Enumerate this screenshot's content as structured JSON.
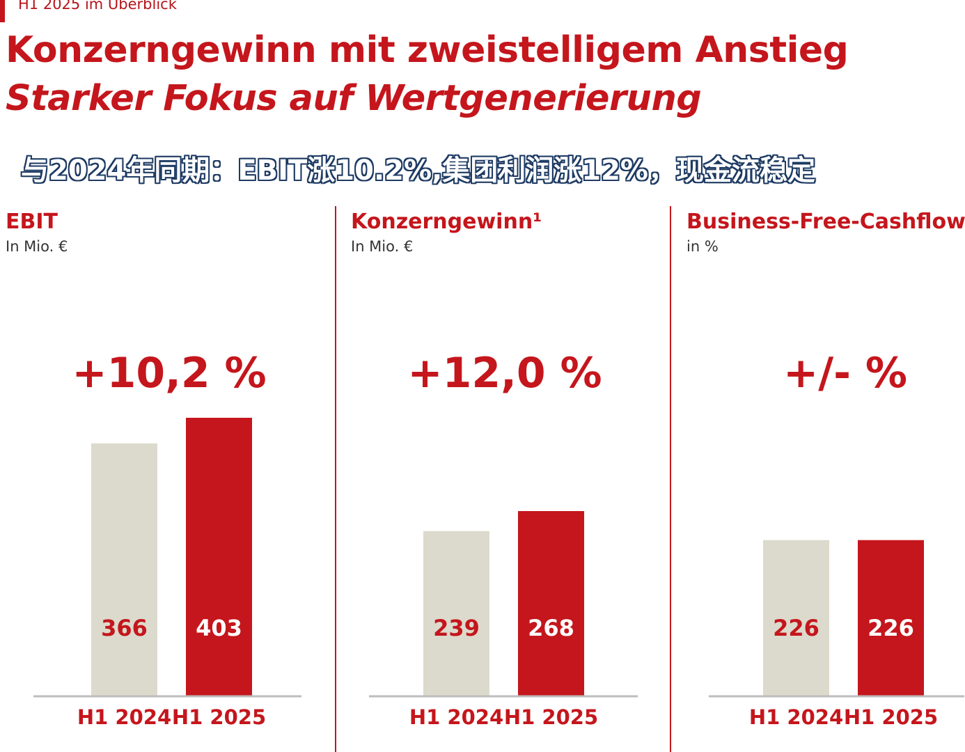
{
  "header": {
    "section_label": "H1 2025 im Überblick",
    "title": "Konzerngewinn mit zweistelligem Anstieg",
    "subtitle": "Starker Fokus auf Wertgenerierung"
  },
  "caption": "与2024年同期：EBIT涨10.2%,集团利润涨12%，现金流稳定",
  "colors": {
    "accent": "#c4161c",
    "bar_prior": "#dcdacc",
    "bar_current": "#c4161c",
    "axis": "#bdbdbd"
  },
  "chart_data": [
    {
      "type": "bar",
      "title": "EBIT",
      "unit": "In Mio. €",
      "change_label": "+10,2 %",
      "categories": [
        "H1 2024",
        "H1 2025"
      ],
      "values": [
        366,
        403
      ],
      "value_labels": [
        "366",
        "403"
      ]
    },
    {
      "type": "bar",
      "title": "Konzerngewinn¹",
      "unit": "In Mio. €",
      "change_label": "+12,0 %",
      "categories": [
        "H1 2024",
        "H1 2025"
      ],
      "values": [
        239,
        268
      ],
      "value_labels": [
        "239",
        "268"
      ]
    },
    {
      "type": "bar",
      "title": "Business-Free-Cashflow",
      "unit": "in %",
      "change_label": "+/- %",
      "categories": [
        "H1 2024",
        "H1 2025"
      ],
      "values": [
        226,
        226
      ],
      "value_labels": [
        "226",
        "226"
      ]
    }
  ]
}
